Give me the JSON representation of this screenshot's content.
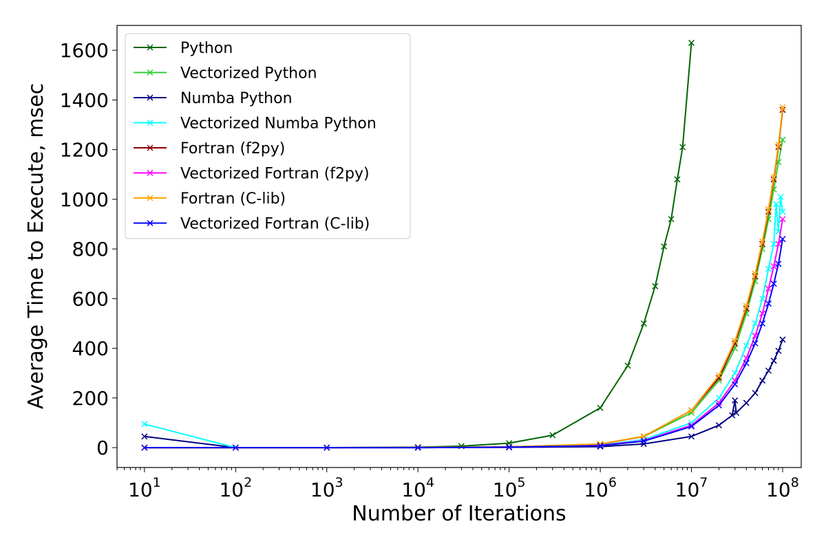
{
  "chart_data": {
    "type": "line",
    "title": "",
    "xlabel": "Number of Iterations",
    "ylabel": "Average Time to Execute, msec",
    "x_scale": "log",
    "xlim": [
      5,
      160000000
    ],
    "ylim": [
      -80,
      1700
    ],
    "x_ticks": [
      {
        "value": 10,
        "base": "10",
        "exp": "1"
      },
      {
        "value": 100,
        "base": "10",
        "exp": "2"
      },
      {
        "value": 1000,
        "base": "10",
        "exp": "3"
      },
      {
        "value": 10000,
        "base": "10",
        "exp": "4"
      },
      {
        "value": 100000,
        "base": "10",
        "exp": "5"
      },
      {
        "value": 1000000,
        "base": "10",
        "exp": "6"
      },
      {
        "value": 10000000,
        "base": "10",
        "exp": "7"
      },
      {
        "value": 100000000,
        "base": "10",
        "exp": "8"
      }
    ],
    "y_ticks": [
      0,
      200,
      400,
      600,
      800,
      1000,
      1200,
      1400,
      1600
    ],
    "grid": false,
    "legend_position": "top-left",
    "marker": "x",
    "series": [
      {
        "name": "Python",
        "color": "#006400",
        "x": [
          10,
          100,
          1000,
          10000,
          30000,
          100000,
          300000,
          1000000,
          2000000,
          3000000,
          4000000,
          5000000,
          6000000,
          7000000,
          8000000,
          10000000
        ],
        "y": [
          0,
          0,
          0.2,
          2,
          6,
          18,
          50,
          160,
          330,
          500,
          650,
          810,
          920,
          1080,
          1210,
          1630
        ]
      },
      {
        "name": "Vectorized Python",
        "color": "#32CD32",
        "x": [
          10,
          100,
          1000,
          10000,
          100000,
          1000000,
          3000000,
          10000000,
          20000000,
          30000000,
          40000000,
          50000000,
          60000000,
          70000000,
          80000000,
          90000000,
          100000000
        ],
        "y": [
          0,
          0,
          0,
          0.5,
          3,
          14,
          45,
          140,
          270,
          400,
          540,
          670,
          800,
          920,
          1040,
          1150,
          1240
        ]
      },
      {
        "name": "Numba Python",
        "color": "#000080",
        "x": [
          10,
          100,
          1000,
          10000,
          100000,
          1000000,
          3000000,
          10000000,
          20000000,
          28000000,
          30000000,
          31000000,
          40000000,
          50000000,
          60000000,
          70000000,
          80000000,
          90000000,
          100000000
        ],
        "y": [
          45,
          0,
          0,
          0,
          1,
          4,
          15,
          45,
          90,
          130,
          190,
          140,
          180,
          220,
          270,
          310,
          350,
          390,
          435
        ]
      },
      {
        "name": "Vectorized Numba Python",
        "color": "#00FFFF",
        "x": [
          10,
          100,
          1000,
          10000,
          100000,
          1000000,
          3000000,
          10000000,
          20000000,
          30000000,
          40000000,
          50000000,
          60000000,
          70000000,
          80000000,
          85000000,
          90000000,
          95000000,
          100000000
        ],
        "y": [
          95,
          0,
          0,
          0,
          2,
          10,
          32,
          100,
          200,
          300,
          410,
          500,
          600,
          720,
          820,
          980,
          870,
          1010,
          950
        ]
      },
      {
        "name": "Fortran (f2py)",
        "color": "#8B0000",
        "x": [
          10,
          100,
          1000,
          10000,
          100000,
          1000000,
          3000000,
          10000000,
          20000000,
          30000000,
          40000000,
          50000000,
          60000000,
          70000000,
          80000000,
          90000000,
          100000000
        ],
        "y": [
          0,
          0,
          0,
          0.5,
          3,
          14,
          45,
          150,
          280,
          420,
          560,
          690,
          820,
          950,
          1080,
          1210,
          1360
        ]
      },
      {
        "name": "Vectorized Fortran (f2py)",
        "color": "#FF00FF",
        "x": [
          10,
          100,
          1000,
          10000,
          100000,
          1000000,
          3000000,
          10000000,
          20000000,
          30000000,
          40000000,
          50000000,
          60000000,
          70000000,
          80000000,
          90000000,
          100000000
        ],
        "y": [
          0,
          0,
          0,
          0,
          2,
          9,
          28,
          90,
          180,
          270,
          360,
          450,
          540,
          640,
          730,
          820,
          920
        ]
      },
      {
        "name": "Fortran (C-lib)",
        "color": "#FFA500",
        "x": [
          10,
          100,
          1000,
          10000,
          100000,
          1000000,
          3000000,
          10000000,
          20000000,
          30000000,
          40000000,
          50000000,
          60000000,
          70000000,
          80000000,
          90000000,
          100000000
        ],
        "y": [
          0,
          0,
          0,
          0.5,
          3,
          15,
          46,
          150,
          290,
          430,
          570,
          700,
          830,
          960,
          1090,
          1220,
          1370
        ]
      },
      {
        "name": "Vectorized Fortran (C-lib)",
        "color": "#0000FF",
        "x": [
          10,
          100,
          1000,
          10000,
          100000,
          1000000,
          3000000,
          10000000,
          20000000,
          30000000,
          40000000,
          50000000,
          60000000,
          70000000,
          80000000,
          90000000,
          100000000
        ],
        "y": [
          0,
          0,
          0,
          0,
          2,
          8,
          26,
          85,
          170,
          255,
          340,
          420,
          500,
          580,
          660,
          740,
          840
        ]
      }
    ]
  }
}
